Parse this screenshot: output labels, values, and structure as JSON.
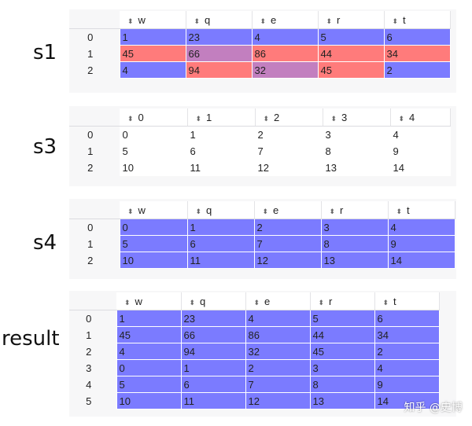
{
  "colors": {
    "blue": "#7b7bff",
    "red": "#ff7b7b",
    "mix": "#c27fbf",
    "plain": "#ffffff"
  },
  "s1": {
    "label": "s1",
    "columns": [
      "w",
      "q",
      "e",
      "r",
      "t"
    ],
    "index": [
      "0",
      "1",
      "2"
    ],
    "rows": [
      [
        "1",
        "23",
        "4",
        "5",
        "6"
      ],
      [
        "45",
        "66",
        "86",
        "44",
        "34"
      ],
      [
        "4",
        "94",
        "32",
        "45",
        "2"
      ]
    ],
    "colors": [
      [
        "blue",
        "blue",
        "blue",
        "blue",
        "blue"
      ],
      [
        "red",
        "mix",
        "red",
        "red",
        "red"
      ],
      [
        "blue",
        "red",
        "mix",
        "red",
        "blue"
      ]
    ]
  },
  "s3": {
    "label": "s3",
    "columns": [
      "0",
      "1",
      "2",
      "3",
      "4"
    ],
    "index": [
      "0",
      "1",
      "2"
    ],
    "rows": [
      [
        "0",
        "1",
        "2",
        "3",
        "4"
      ],
      [
        "5",
        "6",
        "7",
        "8",
        "9"
      ],
      [
        "10",
        "11",
        "12",
        "13",
        "14"
      ]
    ],
    "colors": [
      [
        "plain",
        "plain",
        "plain",
        "plain",
        "plain"
      ],
      [
        "plain",
        "plain",
        "plain",
        "plain",
        "plain"
      ],
      [
        "plain",
        "plain",
        "plain",
        "plain",
        "plain"
      ]
    ]
  },
  "s4": {
    "label": "s4",
    "columns": [
      "w",
      "q",
      "e",
      "r",
      "t"
    ],
    "index": [
      "0",
      "1",
      "2"
    ],
    "rows": [
      [
        "0",
        "1",
        "2",
        "3",
        "4"
      ],
      [
        "5",
        "6",
        "7",
        "8",
        "9"
      ],
      [
        "10",
        "11",
        "12",
        "13",
        "14"
      ]
    ],
    "colors": [
      [
        "blue",
        "blue",
        "blue",
        "blue",
        "blue"
      ],
      [
        "blue",
        "blue",
        "blue",
        "blue",
        "blue"
      ],
      [
        "blue",
        "blue",
        "blue",
        "blue",
        "blue"
      ]
    ]
  },
  "result": {
    "label": "result",
    "columns": [
      "w",
      "q",
      "e",
      "r",
      "t"
    ],
    "index": [
      "0",
      "1",
      "2",
      "3",
      "4",
      "5"
    ],
    "rows": [
      [
        "1",
        "23",
        "4",
        "5",
        "6"
      ],
      [
        "45",
        "66",
        "86",
        "44",
        "34"
      ],
      [
        "4",
        "94",
        "32",
        "45",
        "2"
      ],
      [
        "0",
        "1",
        "2",
        "3",
        "4"
      ],
      [
        "5",
        "6",
        "7",
        "8",
        "9"
      ],
      [
        "10",
        "11",
        "12",
        "13",
        "14"
      ]
    ],
    "colors": [
      [
        "blue",
        "blue",
        "blue",
        "blue",
        "blue"
      ],
      [
        "blue",
        "blue",
        "blue",
        "blue",
        "blue"
      ],
      [
        "blue",
        "blue",
        "blue",
        "blue",
        "blue"
      ],
      [
        "blue",
        "blue",
        "blue",
        "blue",
        "blue"
      ],
      [
        "blue",
        "blue",
        "blue",
        "blue",
        "blue"
      ],
      [
        "blue",
        "blue",
        "blue",
        "blue",
        "blue"
      ]
    ]
  },
  "watermark": "知乎 @史博"
}
